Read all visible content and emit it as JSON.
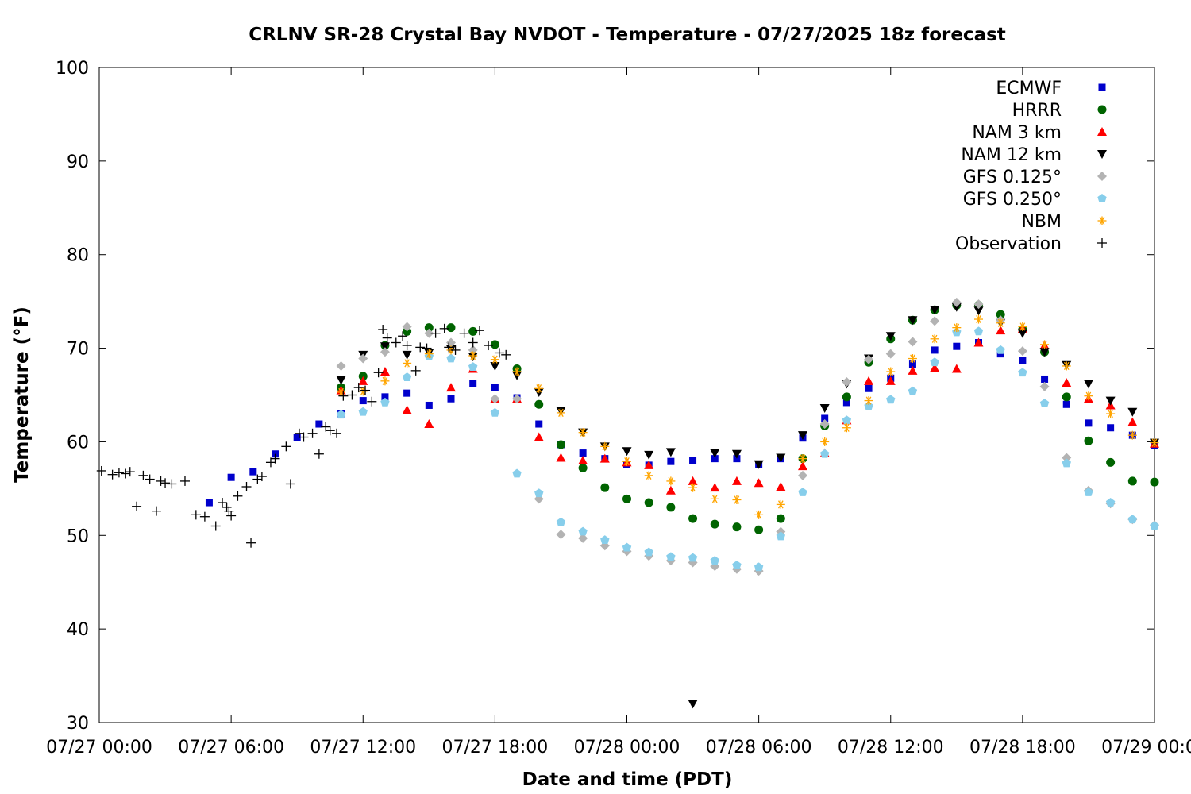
{
  "chart_data": {
    "type": "scatter",
    "title": "CRLNV SR-28 Crystal Bay NVDOT - Temperature - 07/27/2025 18z forecast",
    "xlabel": "Date and time (PDT)",
    "ylabel": "Temperature (°F)",
    "x_unit": "hours since 07/27 00:00 PDT",
    "xlim": [
      0,
      48
    ],
    "ylim": [
      30,
      100
    ],
    "xticks": [
      {
        "value": 0,
        "label": "07/27 00:00"
      },
      {
        "value": 6,
        "label": "07/27 06:00"
      },
      {
        "value": 12,
        "label": "07/27 12:00"
      },
      {
        "value": 18,
        "label": "07/27 18:00"
      },
      {
        "value": 24,
        "label": "07/28 00:00"
      },
      {
        "value": 30,
        "label": "07/28 06:00"
      },
      {
        "value": 36,
        "label": "07/28 12:00"
      },
      {
        "value": 42,
        "label": "07/28 18:00"
      },
      {
        "value": 48,
        "label": "07/29 00:00"
      }
    ],
    "yticks": [
      30,
      40,
      50,
      60,
      70,
      80,
      90,
      100
    ],
    "grid": false,
    "legend_position": "top-right",
    "series": [
      {
        "name": "ECMWF",
        "marker": "square",
        "color": "#0000cc",
        "x": [
          5,
          6,
          7,
          8,
          9,
          10,
          11,
          12,
          13,
          14,
          15,
          16,
          17,
          18,
          19,
          20,
          21,
          22,
          23,
          24,
          25,
          26,
          27,
          28,
          29,
          30,
          31,
          32,
          33,
          34,
          35,
          36,
          37,
          38,
          39,
          40,
          41,
          42,
          43,
          44,
          45,
          46,
          47,
          48
        ],
        "y": [
          53.5,
          56.2,
          56.8,
          58.7,
          60.5,
          61.9,
          63.0,
          64.4,
          64.8,
          65.2,
          63.9,
          64.6,
          66.2,
          65.8,
          64.7,
          61.9,
          59.7,
          58.8,
          58.2,
          57.6,
          57.5,
          57.9,
          58.0,
          58.2,
          58.2,
          57.6,
          58.2,
          60.4,
          62.5,
          64.2,
          65.7,
          66.8,
          68.3,
          69.8,
          70.2,
          70.6,
          69.4,
          68.7,
          66.7,
          64.0,
          62.0,
          61.5,
          60.7,
          59.6
        ]
      },
      {
        "name": "HRRR",
        "marker": "circle",
        "color": "#006400",
        "x": [
          11,
          12,
          13,
          14,
          15,
          16,
          17,
          18,
          19,
          20,
          21,
          22,
          23,
          24,
          25,
          26,
          27,
          28,
          29,
          30,
          31,
          32,
          33,
          34,
          35,
          36,
          37,
          38,
          39,
          40,
          41,
          42,
          43,
          44,
          45,
          46,
          47,
          48
        ],
        "y": [
          65.8,
          67.0,
          70.3,
          71.8,
          72.2,
          72.2,
          71.8,
          70.4,
          67.8,
          64.0,
          59.7,
          57.2,
          55.1,
          53.9,
          53.5,
          53.0,
          51.8,
          51.2,
          50.9,
          50.6,
          51.8,
          58.2,
          61.7,
          64.8,
          68.5,
          71.0,
          73.0,
          74.1,
          74.6,
          74.6,
          73.6,
          72.0,
          69.6,
          64.8,
          60.1,
          57.8,
          55.8,
          55.7
        ]
      },
      {
        "name": "NAM 3 km",
        "marker": "triangle-up",
        "color": "#ff0000",
        "x": [
          11,
          12,
          13,
          14,
          15,
          16,
          17,
          18,
          19,
          20,
          21,
          22,
          23,
          24,
          25,
          26,
          27,
          28,
          29,
          30,
          31,
          32,
          33,
          34,
          35,
          36,
          37,
          38,
          39,
          40,
          41,
          42,
          43,
          44,
          45,
          46,
          47,
          48
        ],
        "y": [
          65.5,
          66.5,
          67.5,
          63.4,
          61.9,
          65.8,
          67.8,
          64.6,
          64.6,
          60.5,
          58.3,
          58.0,
          58.2,
          57.8,
          57.5,
          54.8,
          55.8,
          55.1,
          55.8,
          55.6,
          55.2,
          57.4,
          58.8,
          62.3,
          66.5,
          66.5,
          67.6,
          67.9,
          67.8,
          70.6,
          71.9,
          72.1,
          70.3,
          66.3,
          64.6,
          63.9,
          62.1,
          59.8
        ]
      },
      {
        "name": "NAM 12 km",
        "marker": "triangle-down",
        "color": "#000000",
        "x": [
          11,
          12,
          13,
          14,
          15,
          16,
          17,
          18,
          19,
          20,
          21,
          22,
          23,
          24,
          25,
          26,
          27,
          28,
          29,
          30,
          31,
          32,
          33,
          34,
          35,
          36,
          37,
          38,
          39,
          40,
          41,
          42,
          43,
          44,
          45,
          46,
          47,
          48
        ],
        "y": [
          66.6,
          69.3,
          70.2,
          69.3,
          69.5,
          69.9,
          69.1,
          68.1,
          67.1,
          65.3,
          63.3,
          61.0,
          59.5,
          59.0,
          58.6,
          58.9,
          32.0,
          58.8,
          58.7,
          57.6,
          58.3,
          60.7,
          63.6,
          66.2,
          68.9,
          71.3,
          73.0,
          74.1,
          74.4,
          74.0,
          72.7,
          71.6,
          69.6,
          68.2,
          66.2,
          64.4,
          63.2,
          59.9
        ]
      },
      {
        "name": "GFS 0.125°",
        "marker": "diamond",
        "color": "#b3b3b3",
        "x": [
          11,
          12,
          13,
          14,
          15,
          16,
          17,
          18,
          19,
          20,
          21,
          22,
          23,
          24,
          25,
          26,
          27,
          28,
          29,
          30,
          31,
          32,
          33,
          34,
          35,
          36,
          37,
          38,
          39,
          40,
          41,
          42,
          43,
          44,
          45,
          46,
          47,
          48
        ],
        "y": [
          68.1,
          68.9,
          69.6,
          72.3,
          71.6,
          70.6,
          69.8,
          64.6,
          64.6,
          53.9,
          50.1,
          49.7,
          48.9,
          48.3,
          47.8,
          47.3,
          47.1,
          46.7,
          46.4,
          46.2,
          50.4,
          56.4,
          61.9,
          66.4,
          68.8,
          69.4,
          70.7,
          72.9,
          74.9,
          74.7,
          73.0,
          69.7,
          65.9,
          58.3,
          54.8,
          53.4,
          51.7,
          51.1
        ]
      },
      {
        "name": "GFS 0.250°",
        "marker": "pentagon",
        "color": "#87ceeb",
        "x": [
          11,
          12,
          13,
          14,
          15,
          16,
          17,
          18,
          19,
          20,
          21,
          22,
          23,
          24,
          25,
          26,
          27,
          28,
          29,
          30,
          31,
          32,
          33,
          34,
          35,
          36,
          37,
          38,
          39,
          40,
          41,
          42,
          43,
          44,
          45,
          46,
          47,
          48
        ],
        "y": [
          62.9,
          63.2,
          64.2,
          66.9,
          69.1,
          68.9,
          68.0,
          63.1,
          56.6,
          54.5,
          51.4,
          50.4,
          49.5,
          48.7,
          48.2,
          47.7,
          47.6,
          47.3,
          46.8,
          46.6,
          49.9,
          54.6,
          58.7,
          62.3,
          63.8,
          64.5,
          65.4,
          68.5,
          71.7,
          71.8,
          69.8,
          67.4,
          64.1,
          57.7,
          54.6,
          53.5,
          51.7,
          51.0
        ]
      },
      {
        "name": "NBM",
        "marker": "asterisk",
        "color": "#ffa500",
        "x": [
          11,
          12,
          13,
          14,
          15,
          16,
          17,
          18,
          19,
          20,
          21,
          22,
          23,
          24,
          25,
          26,
          27,
          28,
          29,
          30,
          31,
          32,
          33,
          34,
          35,
          36,
          37,
          38,
          39,
          40,
          41,
          42,
          43,
          44,
          45,
          46,
          47,
          48
        ],
        "y": [
          65.3,
          65.4,
          66.5,
          68.4,
          69.4,
          69.8,
          69.2,
          68.8,
          67.5,
          65.7,
          63.1,
          61.0,
          59.5,
          57.9,
          56.4,
          55.8,
          55.1,
          53.9,
          53.8,
          52.2,
          53.3,
          58.2,
          60.0,
          61.5,
          64.4,
          67.5,
          68.9,
          71.0,
          72.2,
          73.1,
          72.7,
          72.3,
          70.4,
          68.1,
          64.9,
          63.0,
          60.7,
          59.9
        ]
      },
      {
        "name": "Observation",
        "marker": "plus",
        "color": "#000000",
        "x": [
          0.1,
          0.6,
          0.9,
          1.2,
          1.4,
          1.7,
          2.0,
          2.3,
          2.6,
          2.8,
          3.0,
          3.3,
          3.9,
          4.4,
          4.8,
          5.3,
          5.6,
          5.8,
          5.9,
          6.0,
          6.3,
          6.7,
          6.9,
          7.2,
          7.4,
          7.8,
          8.0,
          8.5,
          8.7,
          9.1,
          9.3,
          9.7,
          10.0,
          10.3,
          10.5,
          10.8,
          11.1,
          11.5,
          11.8,
          12.1,
          12.4,
          12.7,
          12.9,
          13.1,
          13.5,
          13.8,
          14.0,
          14.4,
          14.6,
          14.9,
          15.3,
          15.7,
          15.9,
          16.2,
          16.6,
          17.0,
          17.3,
          17.7,
          18.2,
          18.5
        ],
        "y": [
          56.9,
          56.5,
          56.7,
          56.6,
          56.8,
          53.1,
          56.4,
          56.0,
          52.6,
          55.8,
          55.6,
          55.5,
          55.8,
          52.2,
          52.0,
          51.0,
          53.5,
          53.0,
          52.6,
          52.1,
          54.2,
          55.2,
          49.2,
          56.0,
          56.3,
          57.8,
          58.2,
          59.5,
          55.5,
          60.9,
          60.5,
          60.9,
          58.7,
          61.6,
          61.2,
          60.9,
          64.9,
          65.0,
          65.8,
          65.5,
          64.3,
          67.4,
          72.0,
          71.1,
          70.6,
          71.3,
          70.3,
          67.6,
          70.1,
          70.0,
          71.6,
          72.1,
          70.1,
          69.8,
          71.6,
          70.6,
          71.9,
          70.3,
          69.5,
          69.3
        ]
      }
    ]
  }
}
